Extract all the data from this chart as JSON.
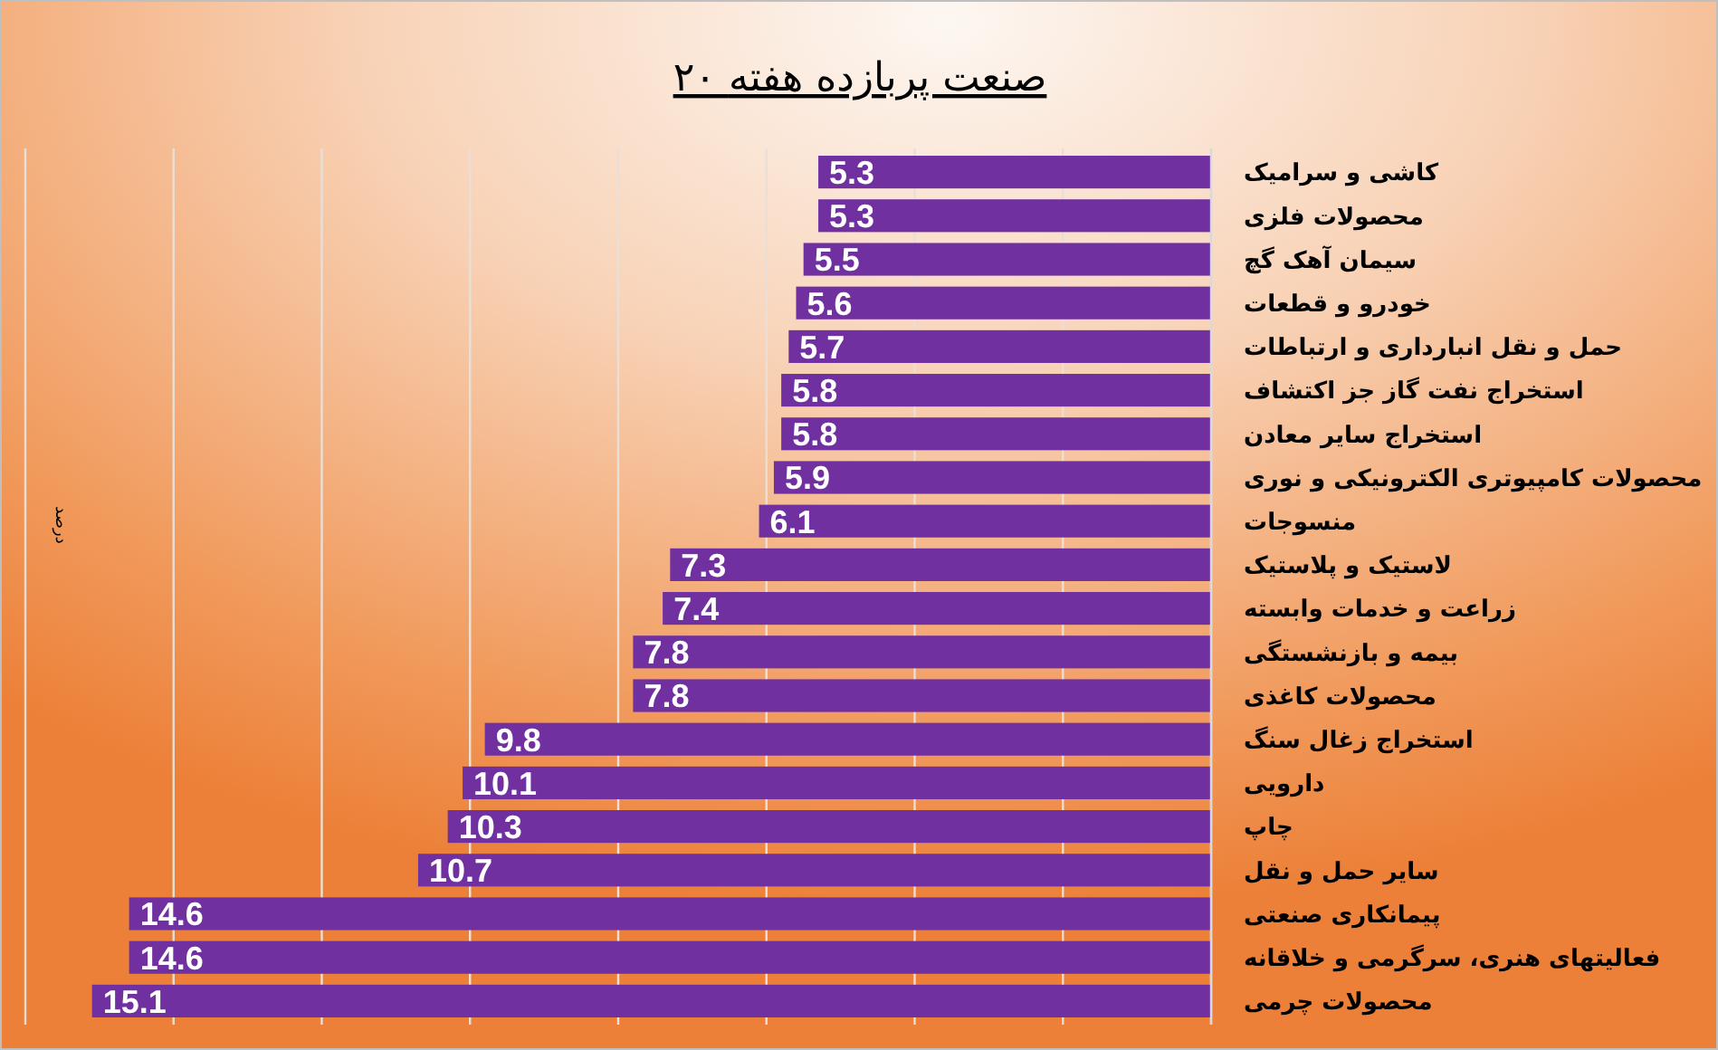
{
  "chart_data": {
    "type": "bar",
    "orientation": "horizontal",
    "title": "۲۰ صنعت پربازده هفته",
    "categories": [
      "کاشی و سرامیک",
      "محصولات فلزی",
      "سیمان آهک گچ",
      "خودرو و قطعات",
      "حمل و نقل انبارداری و ارتباطات",
      "استخراج نفت گاز جز اکتشاف",
      "استخراج سایر معادن",
      "محصولات کامپیوتری الکترونیکی و نوری",
      "منسوجات",
      "لاستیک و پلاستیک",
      "زراعت و خدمات وابسته",
      "بیمه و بازنشستگی",
      "محصولات کاغذی",
      "استخراج زغال سنگ",
      "دارویی",
      "چاپ",
      "سایر حمل و نقل",
      "پیمانکاری صنعتی",
      "فعالیتهای هنری، سرگرمی و خلاقانه",
      "محصولات چرمی"
    ],
    "values": [
      5.3,
      5.3,
      5.5,
      5.6,
      5.7,
      5.8,
      5.8,
      5.9,
      6.1,
      7.3,
      7.4,
      7.8,
      7.8,
      9.8,
      10.1,
      10.3,
      10.7,
      14.6,
      14.6,
      15.1
    ],
    "color": "#7030a0",
    "xlim": [
      16,
      0
    ],
    "xticks": [
      {
        "value": 0,
        "label": null
      },
      {
        "value": 2,
        "label": null
      },
      {
        "value": 4,
        "label": null
      },
      {
        "value": 6,
        "label": null
      },
      {
        "value": 8,
        "label": null
      },
      {
        "value": 10,
        "label": null
      },
      {
        "value": 12,
        "label": null
      },
      {
        "value": 14,
        "label": null
      },
      {
        "value": 16,
        "label": null
      }
    ],
    "grid": "x",
    "tick_labels": "y",
    "data_labels": true,
    "annotations": [
      "درصد"
    ]
  }
}
